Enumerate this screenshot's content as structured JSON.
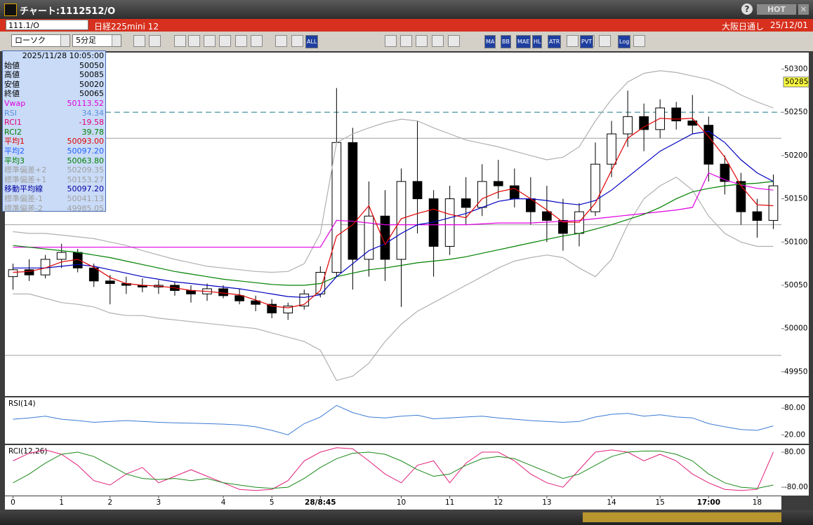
{
  "window": {
    "title": "チャート:1112512/O",
    "help": "?",
    "hot": "HOT"
  },
  "symbol_bar": {
    "code": "111.1/O",
    "name": "日経225mini 12",
    "session": "大阪日通し",
    "date": "25/12/01"
  },
  "toolbar": {
    "chart_style": "ローソク",
    "timeframe": "5分足",
    "buttons": [
      "ALL",
      "MA",
      "BB",
      "MAE",
      "HL",
      "ATR",
      "PVT",
      "Log"
    ]
  },
  "info_panel": {
    "datetime": "2025/11/28 10:05:00",
    "rows": [
      {
        "label": "始値",
        "value": "50050",
        "color": "#000000"
      },
      {
        "label": "高値",
        "value": "50085",
        "color": "#000000"
      },
      {
        "label": "安値",
        "value": "50020",
        "color": "#000000"
      },
      {
        "label": "終値",
        "value": "50065",
        "color": "#000000"
      },
      {
        "label": "Vwap",
        "value": "50113.52",
        "color": "#e000e0"
      },
      {
        "label": "RSI",
        "value": "34.34",
        "color": "#5b8fe0"
      },
      {
        "label": "RCI1",
        "value": "-19.58",
        "color": "#e0007a"
      },
      {
        "label": "RCI2",
        "value": "39.78",
        "color": "#008000"
      },
      {
        "label": "平均1",
        "value": "50093.00",
        "color": "#e00000"
      },
      {
        "label": "平均2",
        "value": "50097.20",
        "color": "#2060ff"
      },
      {
        "label": "平均3",
        "value": "50063.80",
        "color": "#008000"
      },
      {
        "label": "標準偏差+2",
        "value": "50209.35",
        "color": "#a0a0a0"
      },
      {
        "label": "標準偏差+1",
        "value": "50153.27",
        "color": "#a0a0a0"
      },
      {
        "label": "移動平均線",
        "value": "50097.20",
        "color": "#0000a0"
      },
      {
        "label": "標準偏差-1",
        "value": "50041.13",
        "color": "#a0a0a0"
      },
      {
        "label": "標準偏差-2",
        "value": "49985.05",
        "color": "#a0a0a0"
      }
    ]
  },
  "chart_data": [
    {
      "type": "candlestick",
      "categories": [
        "0",
        null,
        null,
        "1",
        null,
        null,
        "2",
        null,
        null,
        "3",
        null,
        null,
        null,
        "4",
        null,
        null,
        "5",
        null,
        null,
        "28/8:45",
        null,
        null,
        null,
        null,
        "10",
        null,
        null,
        "11",
        null,
        null,
        "12",
        null,
        null,
        "13",
        null,
        null,
        null,
        "14",
        null,
        null,
        "15",
        null,
        null,
        "17:00",
        null,
        null,
        "18",
        null
      ],
      "candles": {
        "open": [
          50060,
          50068,
          50062,
          50080,
          50088,
          50070,
          50055,
          50052,
          50050,
          50048,
          50050,
          50044,
          50040,
          50046,
          50038,
          50032,
          50028,
          50018,
          50026,
          50040,
          50065,
          50215,
          50080,
          50130,
          50080,
          50170,
          50150,
          50095,
          50150,
          50140,
          50170,
          50165,
          50150,
          50135,
          50125,
          50110,
          50135,
          50190,
          50225,
          50245,
          50230,
          50255,
          50240,
          50235,
          50190,
          50170,
          50135,
          50125
        ],
        "high": [
          50075,
          50080,
          50085,
          50098,
          50092,
          50075,
          50062,
          50060,
          50058,
          50056,
          50054,
          50050,
          50052,
          50050,
          50046,
          50038,
          50034,
          50030,
          50045,
          50072,
          50278,
          50232,
          50170,
          50160,
          50185,
          50240,
          50160,
          50165,
          50175,
          50190,
          50195,
          50185,
          50175,
          50165,
          50150,
          50145,
          50215,
          50240,
          50275,
          50260,
          50265,
          50262,
          50270,
          50245,
          50200,
          50180,
          50150,
          50178
        ],
        "low": [
          50045,
          50055,
          50058,
          50070,
          50065,
          50048,
          50028,
          50040,
          50042,
          50040,
          50038,
          50030,
          50032,
          50035,
          50028,
          50020,
          50012,
          50010,
          50022,
          50036,
          50060,
          50045,
          50060,
          50055,
          50025,
          50110,
          50060,
          50085,
          50120,
          50130,
          50150,
          50140,
          50120,
          50100,
          50090,
          50095,
          50130,
          50175,
          50210,
          50205,
          50220,
          50230,
          50225,
          50170,
          50155,
          50120,
          50105,
          50115
        ],
        "close": [
          50068,
          50062,
          50080,
          50088,
          50070,
          50055,
          50052,
          50050,
          50048,
          50050,
          50044,
          50040,
          50046,
          50038,
          50032,
          50028,
          50018,
          50026,
          50040,
          50065,
          50215,
          50080,
          50130,
          50080,
          50170,
          50150,
          50095,
          50150,
          50140,
          50170,
          50165,
          50150,
          50135,
          50125,
          50110,
          50135,
          50190,
          50225,
          50245,
          50230,
          50255,
          50240,
          50235,
          50190,
          50170,
          50135,
          50125,
          50165
        ],
        "up_color": "#ffffff",
        "down_color": "#000000"
      },
      "lines": [
        {
          "color": "#b0b0b0",
          "values": [
            50112,
            50110,
            50110,
            50108,
            50106,
            50104,
            50100,
            50096,
            50090,
            50085,
            50080,
            50076,
            50072,
            50070,
            50068,
            50066,
            50065,
            50066,
            50075,
            50110,
            50215,
            50225,
            50232,
            50238,
            50242,
            50240,
            50232,
            50225,
            50218,
            50214,
            50210,
            50205,
            50200,
            50195,
            50198,
            50210,
            50240,
            50265,
            50285,
            50295,
            50298,
            50296,
            50292,
            50288,
            50280,
            50270,
            50262,
            50255
          ]
        },
        {
          "color": "#b0b0b0",
          "values": [
            50040,
            50040,
            50035,
            50030,
            50028,
            50025,
            50018,
            50015,
            50015,
            50012,
            50010,
            50008,
            50006,
            50004,
            50002,
            50000,
            49995,
            49990,
            49985,
            49975,
            49940,
            49945,
            49960,
            49985,
            50005,
            50020,
            50030,
            50040,
            50050,
            50060,
            50070,
            50078,
            50082,
            50085,
            50082,
            50070,
            50060,
            50080,
            50120,
            50150,
            50165,
            50175,
            50160,
            50130,
            50110,
            50100,
            50095,
            50095
          ]
        },
        {
          "color": "#e000e0",
          "values": [
            50094,
            50094,
            50094,
            50094,
            50094,
            50094,
            50094,
            50094,
            50094,
            50094,
            50094,
            50094,
            50094,
            50094,
            50094,
            50094,
            50094,
            50094,
            50094,
            50094,
            50125,
            50124,
            50122,
            50120,
            50120,
            50120,
            50120,
            50120,
            50120,
            50121,
            50122,
            50122,
            50122,
            50123,
            50124,
            50125,
            50127,
            50129,
            50131,
            50133,
            50135,
            50137,
            50140,
            50180,
            50172,
            50166,
            50162,
            50160
          ]
        },
        {
          "color": "#008000",
          "values": [
            50096,
            50094,
            50092,
            50090,
            50088,
            50085,
            50082,
            50078,
            50074,
            50070,
            50066,
            50063,
            50060,
            50057,
            50055,
            50053,
            50051,
            50050,
            50050,
            50052,
            50060,
            50064,
            50068,
            50070,
            50073,
            50076,
            50078,
            50080,
            50083,
            50087,
            50091,
            50095,
            50099,
            50103,
            50107,
            50110,
            50115,
            50120,
            50126,
            50132,
            50140,
            50150,
            50158,
            50162,
            50165,
            50167,
            50168,
            50170
          ]
        },
        {
          "color": "#0000c0",
          "values": [
            50070,
            50070,
            50070,
            50072,
            50074,
            50072,
            50068,
            50064,
            50060,
            50057,
            50054,
            50052,
            50050,
            50048,
            50046,
            50043,
            50040,
            50037,
            50036,
            50039,
            50060,
            50075,
            50090,
            50098,
            50110,
            50120,
            50123,
            50128,
            50133,
            50140,
            50147,
            50150,
            50150,
            50148,
            50145,
            50143,
            50148,
            50160,
            50175,
            50190,
            50205,
            50215,
            50225,
            50228,
            50215,
            50195,
            50180,
            50170
          ]
        },
        {
          "color": "#e00000",
          "values": [
            50065,
            50066,
            50070,
            50077,
            50080,
            50071,
            50059,
            50052,
            50050,
            50049,
            50047,
            50044,
            50043,
            50041,
            50039,
            50033,
            50026,
            50024,
            50028,
            50044,
            50107,
            50120,
            50142,
            50097,
            50127,
            50133,
            50138,
            50132,
            50128,
            50150,
            50158,
            50162,
            50150,
            50137,
            50123,
            50123,
            50145,
            50183,
            50220,
            50233,
            50243,
            50242,
            50243,
            50222,
            50198,
            50165,
            50143,
            50142
          ]
        }
      ],
      "hlines": [
        {
          "value": 50250,
          "color": "#1a7a8a",
          "dashed": true
        },
        {
          "value": 50220,
          "color": "#a0a0a0",
          "dashed": false
        },
        {
          "value": 50120,
          "color": "#a0a0a0",
          "dashed": false
        },
        {
          "value": 49969,
          "color": "#a0a0a0",
          "dashed": false
        }
      ],
      "last_price": 50285,
      "ylim": [
        49922,
        50319
      ],
      "yticks": [
        49950,
        50000,
        50050,
        50100,
        50150,
        50200,
        50250,
        50300
      ]
    },
    {
      "type": "line",
      "title": "RSI(14)",
      "series": [
        {
          "color": "#3a7bd5",
          "values": [
            55,
            58,
            62,
            55,
            52,
            48,
            50,
            52,
            50,
            48,
            47,
            46,
            45,
            44,
            42,
            38,
            30,
            20,
            45,
            60,
            86,
            70,
            60,
            58,
            62,
            64,
            56,
            58,
            60,
            62,
            58,
            55,
            52,
            50,
            48,
            50,
            60,
            66,
            68,
            62,
            65,
            60,
            58,
            45,
            38,
            32,
            30,
            40
          ]
        }
      ],
      "ylim": [
        0,
        104
      ],
      "yticks": [
        {
          "value": 20,
          "label": "20.00"
        },
        {
          "value": 80,
          "label": "80.00"
        }
      ]
    },
    {
      "type": "line",
      "title": "RCI(12,26)",
      "series": [
        {
          "color": "#e0207a",
          "values": [
            40,
            75,
            90,
            70,
            20,
            -50,
            -70,
            -20,
            10,
            -60,
            -30,
            0,
            -30,
            -60,
            -90,
            -95,
            -90,
            -50,
            40,
            80,
            100,
            95,
            40,
            -20,
            -60,
            20,
            40,
            -60,
            30,
            80,
            80,
            40,
            -20,
            -60,
            -80,
            0,
            80,
            90,
            80,
            40,
            70,
            40,
            -20,
            -60,
            -90,
            -95,
            -90,
            80
          ]
        },
        {
          "color": "#1a8a1a",
          "values": [
            -60,
            -20,
            30,
            70,
            80,
            60,
            20,
            -20,
            -40,
            -45,
            -40,
            -50,
            -40,
            -60,
            -70,
            -80,
            -85,
            -80,
            -40,
            10,
            50,
            75,
            80,
            70,
            40,
            0,
            -30,
            -20,
            20,
            50,
            60,
            50,
            20,
            -10,
            -40,
            -20,
            20,
            60,
            80,
            85,
            85,
            70,
            40,
            -20,
            -60,
            -80,
            -85,
            -70
          ]
        }
      ],
      "ylim": [
        -118,
        112
      ],
      "yticks": [
        {
          "value": -80,
          "label": "-80.00"
        },
        {
          "value": 80,
          "label": "80.00"
        }
      ]
    }
  ]
}
